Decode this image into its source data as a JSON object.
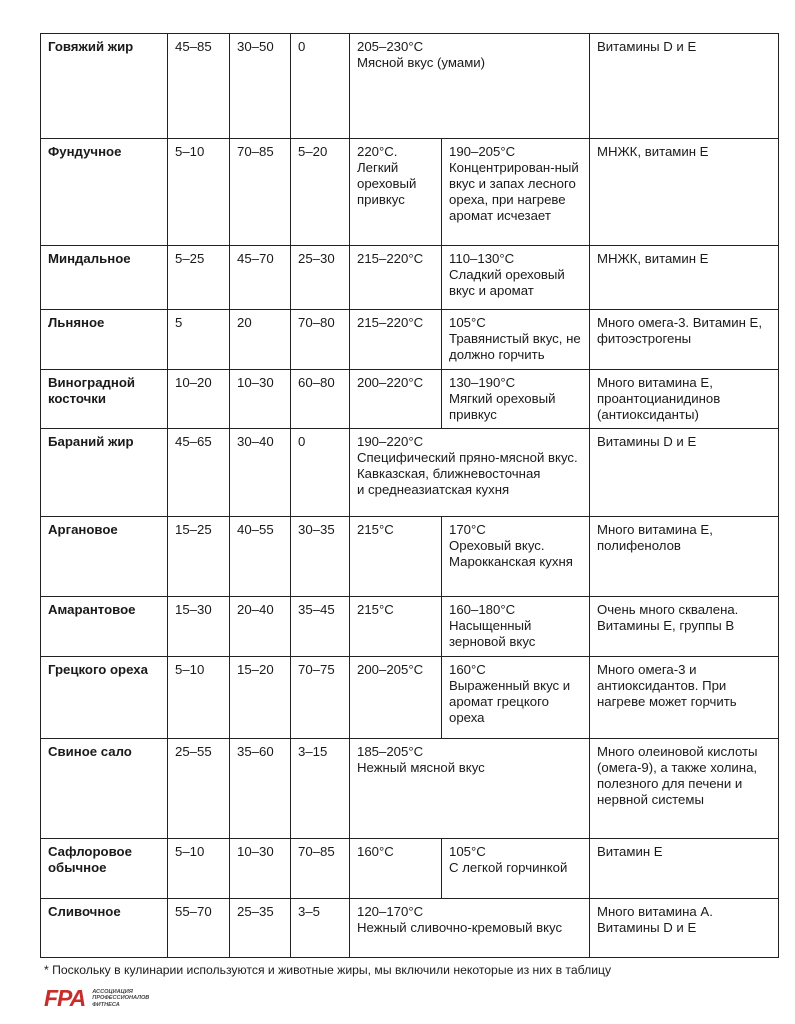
{
  "rows": [
    {
      "name": "Говяжий жир",
      "sat": "45–85",
      "mono": "30–50",
      "poly": "0",
      "temp_merged": "205–230°C\nМясной вкус (умами)",
      "notes": "Витамины D и E"
    },
    {
      "name": "Фундучное",
      "sat": "5–10",
      "mono": "70–85",
      "poly": "5–20",
      "temp1": "220°C.\nЛегкий ореховый привкус",
      "temp2": "190–205°C\nКонцентрирован-ный вкус и запах лесного ореха, при нагреве аромат исчезает",
      "notes": "МНЖК, витамин E"
    },
    {
      "name": "Миндальное",
      "sat": "5–25",
      "mono": "45–70",
      "poly": "25–30",
      "temp1": "215–220°C",
      "temp2": "110–130°C\nСладкий ореховый вкус и аромат",
      "notes": "МНЖК, витамин E"
    },
    {
      "name": "Льняное",
      "sat": "5",
      "mono": "20",
      "poly": "70–80",
      "temp1": "215–220°C",
      "temp2": "105°C\nТравянистый вкус, не должно горчить",
      "notes": "Много омега-3. Витамин E, фитоэстрогены"
    },
    {
      "name": "Виноградной косточки",
      "sat": "10–20",
      "mono": "10–30",
      "poly": "60–80",
      "temp1": "200–220°C",
      "temp2": "130–190°C\nМягкий ореховый привкус",
      "notes": "Много витамина E, проантоцианидинов (антиоксиданты)"
    },
    {
      "name": "Бараний жир",
      "sat": "45–65",
      "mono": "30–40",
      "poly": "0",
      "temp_merged": "190–220°C\nСпецифический пряно-мясной вкус.  Кавказская, ближневосточная\nи среднеазиатская кухня",
      "notes": "Витамины D и E"
    },
    {
      "name": "Аргановое",
      "sat": "15–25",
      "mono": "40–55",
      "poly": "30–35",
      "temp1": "215°C",
      "temp2": "170°C\nОреховый вкус. Марокканская кухня",
      "notes": "Много витамина E, полифенолов"
    },
    {
      "name": "Амарантовое",
      "sat": "15–30",
      "mono": "20–40",
      "poly": "35–45",
      "temp1": "215°C",
      "temp2": "160–180°C\nНасыщенный зерновой вкус",
      "notes": "Очень много сквалена. Витамины E, группы B"
    },
    {
      "name": "Грецкого ореха",
      "sat": "5–10",
      "mono": "15–20",
      "poly": "70–75",
      "temp1": "200–205°C",
      "temp2": "160°C\nВыраженный вкус и аромат грецкого ореха",
      "notes": "Много омега-3 и антиоксидантов. При нагреве может горчить"
    },
    {
      "name": "Свиное сало",
      "sat": "25–55",
      "mono": "35–60",
      "poly": "3–15",
      "temp_merged": "185–205°C\nНежный мясной вкус",
      "notes": "Много олеиновой кислоты (омега-9), а также холина, полезного для печени и нервной системы"
    },
    {
      "name": "Сафлоровое обычное",
      "sat": "5–10",
      "mono": "10–30",
      "poly": "70–85",
      "temp1": "160°C",
      "temp2": "105°C\nС легкой горчинкой",
      "notes": "Витамин E"
    },
    {
      "name": "Сливочное",
      "sat": "55–70",
      "mono": "25–35",
      "poly": "3–5",
      "temp_merged": "120–170°C\nНежный сливочно-кремовый вкус",
      "notes": "Много витамина A. Витамины D и E"
    }
  ],
  "footnote": "* Поскольку в кулинарии используются и животные жиры, мы включили некоторые из них в таблицу",
  "logo": {
    "mark": "FPA",
    "text": "АССОЦИАЦИЯ\nПРОФЕССИОНАЛОВ\nФИТНЕСА",
    "color": "#c62d2b"
  }
}
